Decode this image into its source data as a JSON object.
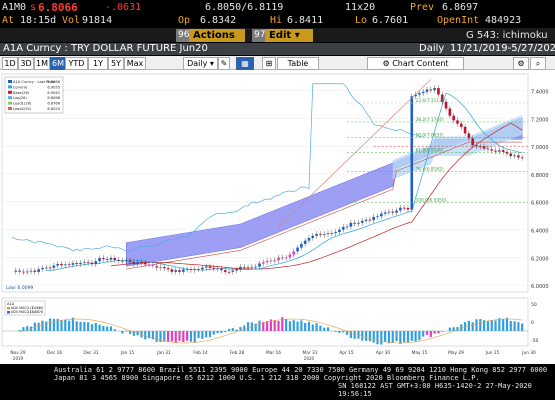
{
  "quote": {
    "ticker": "A1M0",
    "dir_marker": "s",
    "last": "6.8066",
    "change": "-.0631",
    "bid_ask": "6.8050/6.8119",
    "size": "11x20",
    "prev_label": "Prev",
    "prev": "6.8697",
    "at_label": "At",
    "time": "18:15d",
    "vol_label": "Vol",
    "vol": "91814",
    "op_label": "Op",
    "open": "6.8342",
    "hi_label": "Hi",
    "hi": "6.8411",
    "lo_label": "Lo",
    "lo": "6.7601",
    "oi_label": "OpenInt",
    "oi": "484923"
  },
  "toolbar": {
    "num1": "96",
    "actions_label": "Actions",
    "num2": "97",
    "edit_label": "Edit",
    "page_label": "G 543: ichimoku"
  },
  "title_bar": {
    "title": "A1A Curncy : TRY DOLLAR FUTURE Jun20",
    "period": "Daily",
    "range": "11/21/2019-5/27/2020"
  },
  "chart_toolbar": {
    "tabs": [
      "1D",
      "3D",
      "1M",
      "6M",
      "YTD",
      "1Y",
      "5Y",
      "Max"
    ],
    "selected_tab": "6M",
    "interval": "Daily",
    "table_label": "Table",
    "content_label": "Chart Content"
  },
  "legend": {
    "items": [
      {
        "label": "A1A Curncy - Last Price",
        "value": "6.8066",
        "color": "#1f5fbf"
      },
      {
        "label": "Conv(9)",
        "value": "6.9055",
        "color": "#2aa6e0"
      },
      {
        "label": "Base(26)",
        "value": "6.9042",
        "color": "#c42020"
      },
      {
        "label": "Lag(26)",
        "value": "6.8066",
        "color": "#4fb0d8"
      },
      {
        "label": "Lead1(26)",
        "value": "6.8766",
        "color": "#90c860"
      },
      {
        "label": "Lead2(52)",
        "value": "6.6020",
        "color": "#e06060"
      }
    ]
  },
  "price_axis": {
    "ticks": [
      "7.4000",
      "7.2000",
      "7.0000",
      "6.8000",
      "6.6000",
      "6.4000",
      "6.2000",
      "6.0000"
    ]
  },
  "fib_labels": [
    "23.6(7.3112)",
    "38.2(7.1744)",
    "50.0(7.0637)",
    "61.8(6.9530)",
    "76.4(6.8162)",
    "100.0(6.5950)"
  ],
  "low_label": "Low: 6.0099",
  "indicator": {
    "title": "A1A",
    "items": [
      {
        "label": "ADX MACD (1)",
        "value": "-7.4660",
        "color": "#e0a040"
      },
      {
        "label": "ADX MACD (1)",
        "value": "-15.6876",
        "color": "#3070c0"
      }
    ]
  },
  "x_axis": {
    "labels": [
      "Nov 29",
      "Dec 16",
      "Dec 31",
      "Jan 15",
      "Jan 31",
      "Feb 14",
      "Feb 28",
      "Mar 16",
      "Mar 31",
      "Apr 15",
      "Apr 30",
      "May 15",
      "May 29",
      "Jun 15",
      "Jun 30"
    ],
    "years": [
      "2019",
      "2020"
    ]
  },
  "footer": {
    "line1": "Australia 61 2 9777 8600 Brazil 5511 2395 9000 Europe 44 20 7330 7500 Germany 49 69 9204 1210 Hong Kong 852 2977 6000",
    "line2": "Japan 81 3 4565 8900        Singapore 65 6212 1000      U.S. 1 212 318 2000         Copyright 2020 Bloomberg Finance L.P.",
    "line3": "SN 168122 AST  GMT+3:00 H635-1420-2 27-May-2020 19:56:15"
  }
}
